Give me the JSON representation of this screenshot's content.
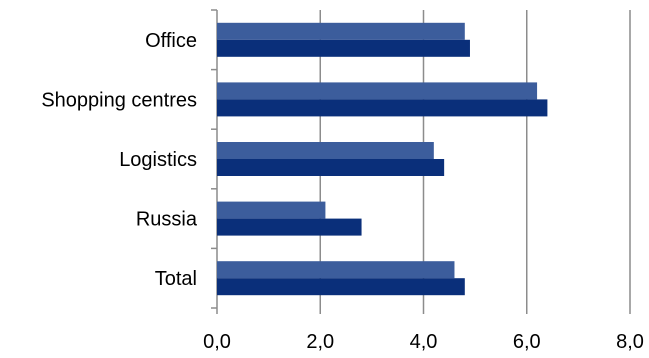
{
  "chart_data": {
    "type": "bar",
    "orientation": "horizontal",
    "categories": [
      "Office",
      "Shopping centres",
      "Logistics",
      "Russia",
      "Total"
    ],
    "series": [
      {
        "values": [
          4.8,
          6.2,
          4.2,
          2.1,
          4.6
        ],
        "color": "#3c5d9c"
      },
      {
        "values": [
          4.9,
          6.4,
          4.4,
          2.8,
          4.8
        ],
        "color": "#0a2f7a"
      }
    ],
    "xlim": [
      0,
      8
    ],
    "xticks": [
      "0,0",
      "2,0",
      "4,0",
      "6,0",
      "8,0"
    ],
    "grid": true,
    "gridline_color": "#8c8c8c"
  }
}
